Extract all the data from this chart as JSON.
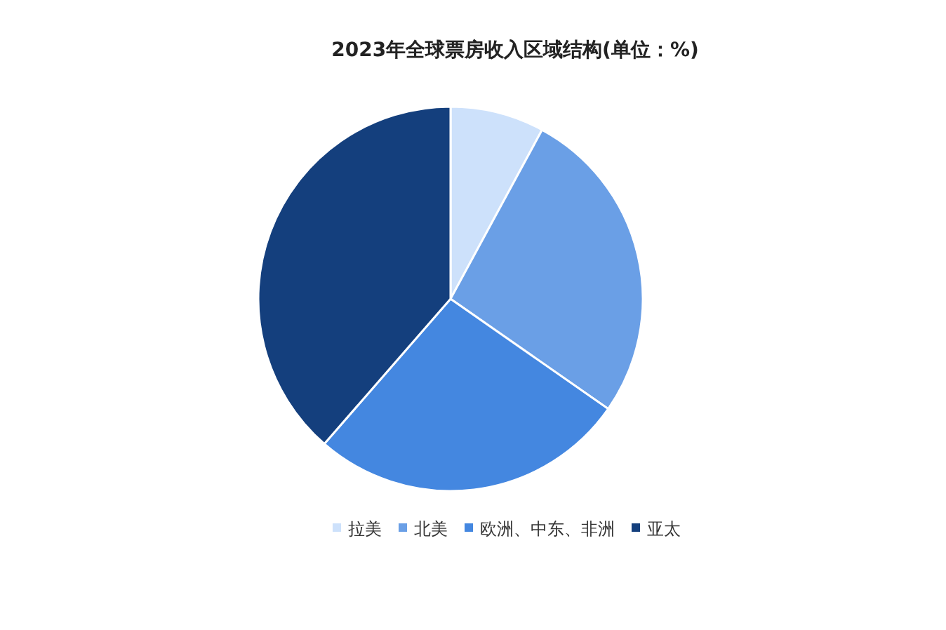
{
  "chart_data": {
    "type": "pie",
    "title": "2023年全球票房收入区域结构(单位：%)",
    "categories": [
      "拉美",
      "北美",
      "欧洲、中东、非洲",
      "亚太"
    ],
    "values": [
      7.9,
      26.8,
      26.7,
      38.6
    ],
    "colors": [
      "#cde1fb",
      "#6a9fe6",
      "#4487e0",
      "#143f7d"
    ],
    "legend": "bottom"
  }
}
